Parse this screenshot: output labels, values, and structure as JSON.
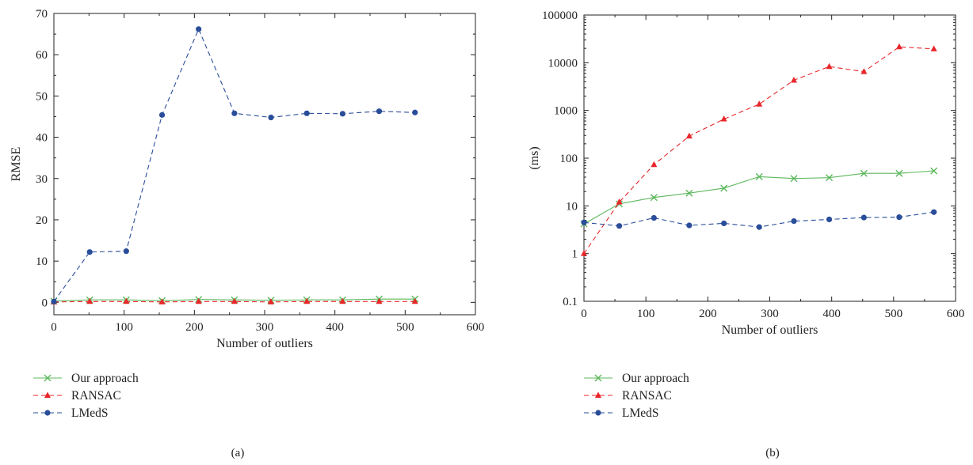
{
  "chart_data": [
    {
      "type": "line",
      "caption": "(a)",
      "xlabel": "Number of outliers",
      "ylabel": "RMSE",
      "xlim": [
        0,
        600
      ],
      "ylim": [
        -3,
        70
      ],
      "xticks": [
        "0",
        "100",
        "200",
        "300",
        "400",
        "500",
        "600"
      ],
      "yticks": [
        "0",
        "10",
        "20",
        "30",
        "40",
        "50",
        "60",
        "70"
      ],
      "yscale": "linear",
      "grid": false,
      "legend_position": "below-left",
      "series": [
        {
          "name": "Our approach",
          "color": "#5cb85c",
          "line": "solid",
          "marker": "x",
          "x": [
            0,
            51,
            103,
            154,
            206,
            257,
            309,
            360,
            411,
            463,
            514
          ],
          "y": [
            0.3,
            0.6,
            0.6,
            0.4,
            0.7,
            0.6,
            0.5,
            0.6,
            0.6,
            0.8,
            0.8
          ]
        },
        {
          "name": "RANSAC",
          "color": "#e8262a",
          "line": "dashed",
          "marker": "triangle",
          "x": [
            0,
            51,
            103,
            154,
            206,
            257,
            309,
            360,
            411,
            463,
            514
          ],
          "y": [
            0.1,
            0.2,
            0.2,
            0.1,
            0.2,
            0.2,
            0.1,
            0.2,
            0.2,
            0.2,
            0.2
          ]
        },
        {
          "name": "LMedS",
          "color": "#2a4d9a",
          "line": "dashed",
          "marker": "circle",
          "x": [
            0,
            51,
            103,
            154,
            206,
            257,
            309,
            360,
            411,
            463,
            514
          ],
          "y": [
            0.2,
            12.2,
            12.4,
            45.4,
            66.2,
            45.8,
            44.8,
            45.8,
            45.7,
            46.3,
            46.0
          ]
        }
      ]
    },
    {
      "type": "line",
      "caption": "(b)",
      "xlabel": "Number of outliers",
      "ylabel": "(ms)",
      "xlim": [
        0,
        600
      ],
      "ylim": [
        0.1,
        100000
      ],
      "xticks": [
        "0",
        "100",
        "200",
        "300",
        "400",
        "500",
        "600"
      ],
      "yticks": [
        "0.1",
        "1",
        "10",
        "100",
        "1000",
        "10000",
        "100000"
      ],
      "yscale": "log",
      "grid": false,
      "legend_position": "below-left",
      "series": [
        {
          "name": "Our approach",
          "color": "#5cb85c",
          "line": "solid",
          "marker": "x",
          "x": [
            0,
            57,
            113,
            170,
            226,
            283,
            339,
            396,
            452,
            509,
            565
          ],
          "y": [
            4.2,
            11,
            15,
            18.5,
            23.5,
            41,
            37.5,
            39,
            48,
            48,
            54
          ]
        },
        {
          "name": "RANSAC",
          "color": "#e8262a",
          "line": "dashed",
          "marker": "triangle",
          "x": [
            0,
            57,
            113,
            170,
            226,
            283,
            339,
            396,
            452,
            509,
            565
          ],
          "y": [
            1.0,
            12,
            73,
            290,
            660,
            1350,
            4300,
            8300,
            6500,
            21500,
            19500
          ]
        },
        {
          "name": "LMedS",
          "color": "#2a4d9a",
          "line": "dashed",
          "marker": "circle",
          "x": [
            0,
            57,
            113,
            170,
            226,
            283,
            339,
            396,
            452,
            509,
            565
          ],
          "y": [
            4.5,
            3.8,
            5.6,
            3.9,
            4.3,
            3.6,
            4.8,
            5.2,
            5.7,
            5.8,
            7.4
          ]
        }
      ]
    }
  ]
}
